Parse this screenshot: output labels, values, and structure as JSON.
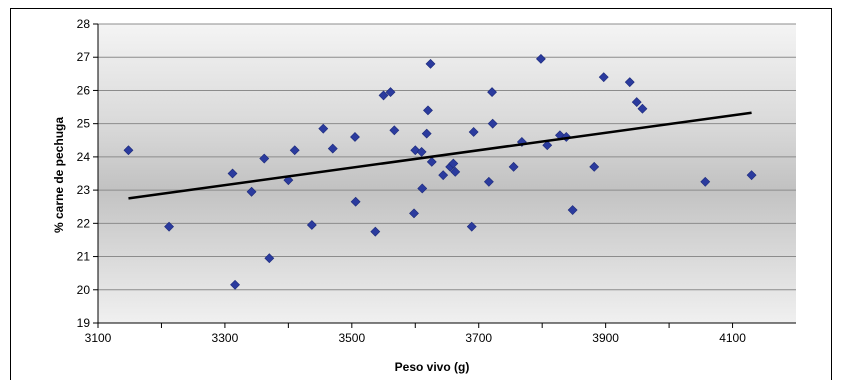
{
  "chart_data": {
    "type": "scatter",
    "title": "",
    "xlabel": "Peso vivo (g)",
    "ylabel": "% carne de pechuga",
    "xlim": [
      3100,
      4200
    ],
    "ylim": [
      19,
      28
    ],
    "xticks": [
      3100,
      3300,
      3500,
      3700,
      3900,
      4100
    ],
    "yticks": [
      19,
      20,
      21,
      22,
      23,
      24,
      25,
      26,
      27,
      28
    ],
    "grid": "horizontal",
    "legend": "none",
    "marker_color": "#2b3b9e",
    "trendline_color": "#000000",
    "points": [
      [
        3148,
        24.2
      ],
      [
        3212,
        21.9
      ],
      [
        3312,
        23.5
      ],
      [
        3316,
        20.15
      ],
      [
        3342,
        22.95
      ],
      [
        3362,
        23.95
      ],
      [
        3370,
        20.95
      ],
      [
        3400,
        23.3
      ],
      [
        3410,
        24.2
      ],
      [
        3437,
        21.95
      ],
      [
        3455,
        24.85
      ],
      [
        3470,
        24.25
      ],
      [
        3505,
        24.6
      ],
      [
        3506,
        22.65
      ],
      [
        3537,
        21.75
      ],
      [
        3550,
        25.85
      ],
      [
        3561,
        25.95
      ],
      [
        3567,
        24.8
      ],
      [
        3598,
        22.3
      ],
      [
        3600,
        24.2
      ],
      [
        3610,
        24.15
      ],
      [
        3611,
        23.05
      ],
      [
        3618,
        24.7
      ],
      [
        3620,
        25.4
      ],
      [
        3624,
        26.8
      ],
      [
        3626,
        23.85
      ],
      [
        3644,
        23.45
      ],
      [
        3655,
        23.7
      ],
      [
        3660,
        23.8
      ],
      [
        3663,
        23.55
      ],
      [
        3689,
        21.9
      ],
      [
        3692,
        24.75
      ],
      [
        3716,
        23.25
      ],
      [
        3721,
        25.95
      ],
      [
        3722,
        25.0
      ],
      [
        3755,
        23.7
      ],
      [
        3768,
        24.45
      ],
      [
        3798,
        26.95
      ],
      [
        3808,
        24.35
      ],
      [
        3828,
        24.65
      ],
      [
        3838,
        24.6
      ],
      [
        3848,
        22.4
      ],
      [
        3882,
        23.7
      ],
      [
        3897,
        26.4
      ],
      [
        3938,
        26.25
      ],
      [
        3949,
        25.65
      ],
      [
        3958,
        25.45
      ],
      [
        4057,
        23.25
      ],
      [
        4130,
        23.45
      ]
    ],
    "trendline": {
      "x": [
        3148,
        4130
      ],
      "y": [
        22.75,
        25.33
      ]
    }
  }
}
